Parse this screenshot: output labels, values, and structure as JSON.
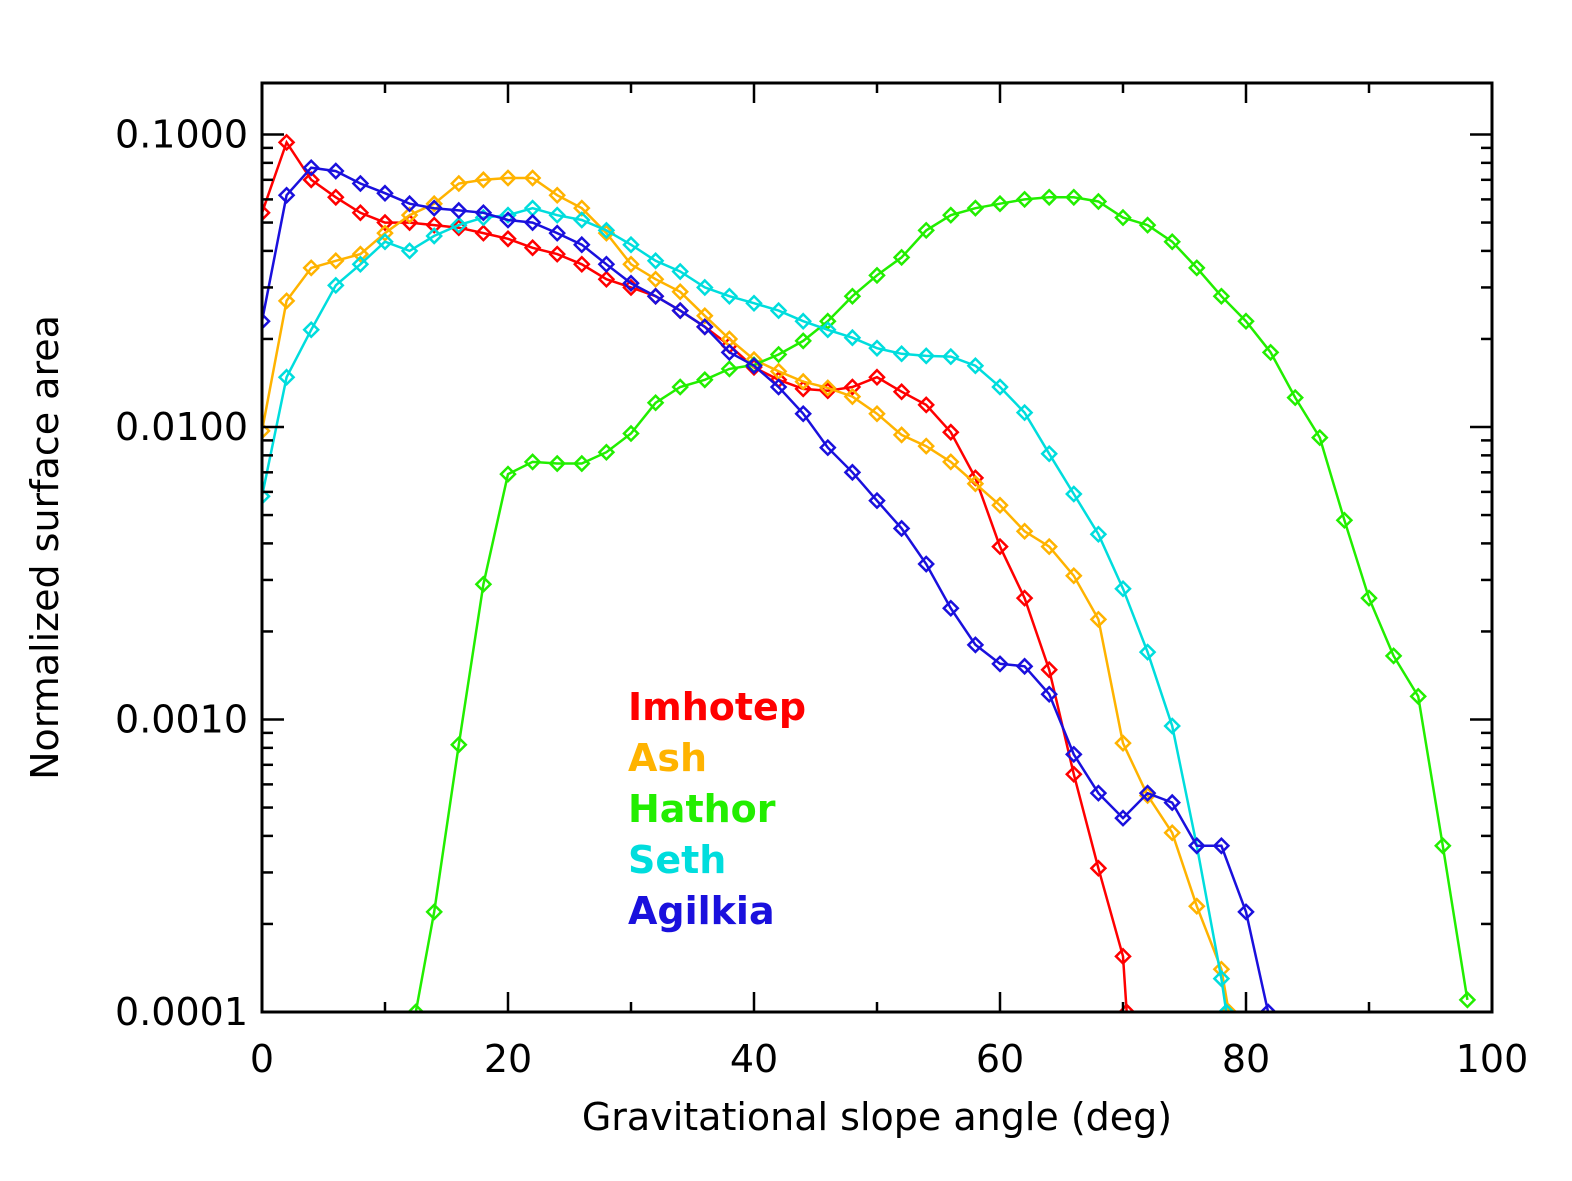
{
  "chart_data": {
    "type": "line",
    "title": "",
    "xlabel": "Gravitational slope angle (deg)",
    "ylabel": "Normalized surface area",
    "xlim": [
      0,
      100
    ],
    "ylim": [
      0.0001,
      0.15
    ],
    "yscale": "log",
    "x_ticks": [
      0,
      20,
      40,
      60,
      80,
      100
    ],
    "x_tick_labels": [
      "0",
      "20",
      "40",
      "60",
      "80",
      "100"
    ],
    "y_ticks": [
      0.0001,
      0.001,
      0.01,
      0.1
    ],
    "y_tick_labels": [
      "0.0001",
      "0.0010",
      "0.0100",
      "0.1000"
    ],
    "legend_placement": "lower-center",
    "marker": "diamond",
    "series": [
      {
        "name": "Imhotep",
        "color": "#ff0000",
        "x": [
          0,
          2,
          4,
          6,
          8,
          10,
          12,
          14,
          16,
          18,
          20,
          22,
          24,
          26,
          28,
          30,
          32,
          34,
          36,
          38,
          40,
          42,
          44,
          46,
          48,
          50,
          52,
          54,
          56,
          58,
          60,
          62,
          64,
          66,
          68,
          70,
          70.3
        ],
        "y": [
          0.054,
          0.094,
          0.07,
          0.061,
          0.054,
          0.05,
          0.05,
          0.049,
          0.048,
          0.046,
          0.044,
          0.041,
          0.039,
          0.036,
          0.032,
          0.03,
          0.028,
          0.025,
          0.022,
          0.019,
          0.016,
          0.0145,
          0.0135,
          0.0133,
          0.0137,
          0.0148,
          0.0132,
          0.0119,
          0.0096,
          0.0067,
          0.0039,
          0.0026,
          0.00148,
          0.00065,
          0.00031,
          0.000155,
          0.0001
        ]
      },
      {
        "name": "Ash",
        "color": "#ffb300",
        "x": [
          0,
          2,
          4,
          6,
          8,
          10,
          12,
          14,
          16,
          18,
          20,
          22,
          24,
          26,
          28,
          30,
          32,
          34,
          36,
          38,
          40,
          42,
          44,
          46,
          48,
          50,
          52,
          54,
          56,
          58,
          60,
          62,
          64,
          66,
          68,
          70,
          72,
          74,
          76,
          78,
          78.6
        ],
        "y": [
          0.0097,
          0.027,
          0.035,
          0.037,
          0.039,
          0.046,
          0.053,
          0.058,
          0.068,
          0.07,
          0.071,
          0.071,
          0.062,
          0.056,
          0.046,
          0.036,
          0.032,
          0.029,
          0.024,
          0.02,
          0.017,
          0.0155,
          0.0143,
          0.0136,
          0.0127,
          0.0111,
          0.0094,
          0.0086,
          0.0076,
          0.0064,
          0.0054,
          0.0044,
          0.0039,
          0.0031,
          0.0022,
          0.00083,
          0.00055,
          0.00041,
          0.00023,
          0.00014,
          0.0001
        ]
      },
      {
        "name": "Hathor",
        "color": "#22ee00",
        "x": [
          12.5,
          14,
          16,
          18,
          20,
          22,
          24,
          26,
          28,
          30,
          32,
          34,
          36,
          38,
          40,
          42,
          44,
          46,
          48,
          50,
          52,
          54,
          56,
          58,
          60,
          62,
          64,
          66,
          68,
          70,
          72,
          74,
          76,
          78,
          80,
          82,
          84,
          86,
          88,
          90,
          92,
          94,
          96,
          98
        ],
        "y": [
          0.0001,
          0.00022,
          0.00082,
          0.0029,
          0.0069,
          0.0076,
          0.0075,
          0.0075,
          0.0082,
          0.0095,
          0.0121,
          0.0137,
          0.0145,
          0.0158,
          0.0163,
          0.0177,
          0.0197,
          0.023,
          0.028,
          0.033,
          0.038,
          0.047,
          0.053,
          0.056,
          0.058,
          0.06,
          0.061,
          0.061,
          0.059,
          0.052,
          0.049,
          0.043,
          0.035,
          0.028,
          0.023,
          0.018,
          0.0126,
          0.0092,
          0.0048,
          0.0026,
          0.00165,
          0.0012,
          0.00037,
          0.00011
        ]
      },
      {
        "name": "Seth",
        "color": "#00dddd",
        "x": [
          0,
          2,
          4,
          6,
          8,
          10,
          12,
          14,
          16,
          18,
          20,
          22,
          24,
          26,
          28,
          30,
          32,
          34,
          36,
          38,
          40,
          42,
          44,
          46,
          48,
          50,
          52,
          54,
          56,
          58,
          60,
          62,
          64,
          66,
          68,
          70,
          72,
          74,
          76,
          78,
          78.4
        ],
        "y": [
          0.0058,
          0.0148,
          0.0215,
          0.0305,
          0.036,
          0.043,
          0.04,
          0.045,
          0.049,
          0.052,
          0.053,
          0.056,
          0.053,
          0.051,
          0.047,
          0.042,
          0.037,
          0.034,
          0.03,
          0.028,
          0.0265,
          0.025,
          0.023,
          0.0215,
          0.0202,
          0.0186,
          0.0178,
          0.0175,
          0.0174,
          0.0162,
          0.0137,
          0.0112,
          0.0081,
          0.0059,
          0.0043,
          0.0028,
          0.0017,
          0.00095,
          0.00037,
          0.00013,
          0.0001
        ]
      },
      {
        "name": "Agilkia",
        "color": "#1a10dd",
        "x": [
          0,
          2,
          4,
          6,
          8,
          10,
          12,
          14,
          16,
          18,
          20,
          22,
          24,
          26,
          28,
          30,
          32,
          34,
          36,
          38,
          40,
          42,
          44,
          46,
          48,
          50,
          52,
          54,
          56,
          58,
          60,
          62,
          64,
          66,
          68,
          70,
          72,
          74,
          76,
          78,
          80,
          81.8
        ],
        "y": [
          0.023,
          0.062,
          0.077,
          0.075,
          0.068,
          0.063,
          0.058,
          0.056,
          0.055,
          0.054,
          0.051,
          0.05,
          0.046,
          0.042,
          0.036,
          0.031,
          0.028,
          0.025,
          0.022,
          0.018,
          0.0162,
          0.0137,
          0.0111,
          0.0085,
          0.007,
          0.0056,
          0.0045,
          0.0034,
          0.0024,
          0.0018,
          0.00155,
          0.00152,
          0.00122,
          0.00076,
          0.00056,
          0.00046,
          0.00056,
          0.00052,
          0.00037,
          0.00037,
          0.00022,
          0.0001
        ]
      }
    ]
  }
}
